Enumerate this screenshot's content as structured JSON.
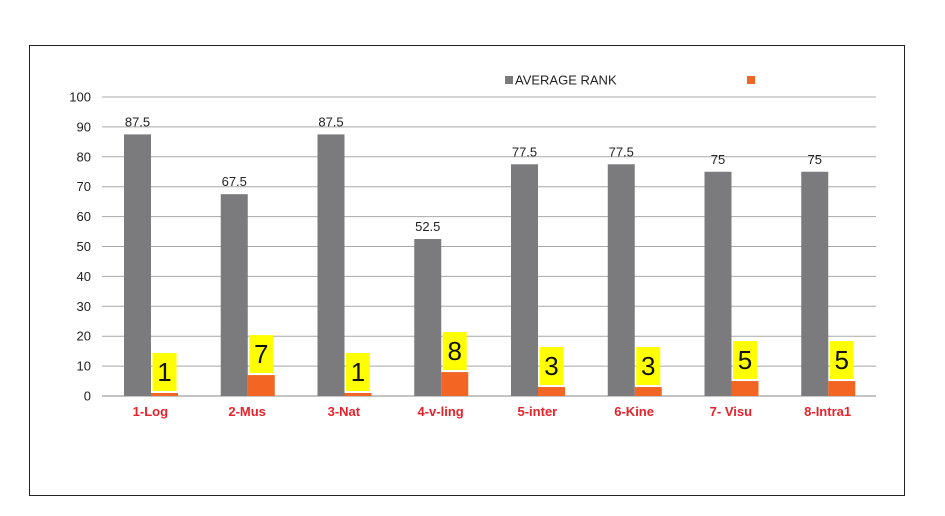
{
  "chart_data": {
    "type": "bar",
    "categories": [
      "1-Log",
      "2-Mus",
      "3-Nat",
      "4-v-ling",
      "5-inter",
      "6-Kine",
      "7- Visu",
      "8-Intra1"
    ],
    "series": [
      {
        "name": "AVERAGE RANK",
        "color": "#7b7b7d",
        "values": [
          87.5,
          67.5,
          87.5,
          52.5,
          77.5,
          77.5,
          75,
          75
        ],
        "labels": [
          "87.5",
          "67.5",
          "87.5",
          "52.5",
          "77.5",
          "77.5",
          "75",
          "75"
        ]
      },
      {
        "name": "",
        "color": "#f26522",
        "values": [
          1,
          7,
          1,
          8,
          3,
          3,
          5,
          5
        ],
        "labels": [
          "1",
          "7",
          "1",
          "8",
          "3",
          "3",
          "5",
          "5"
        ],
        "label_bg": "#ffff00"
      }
    ],
    "yticks": [
      "0",
      "10",
      "20",
      "30",
      "40",
      "50",
      "60",
      "70",
      "80",
      "90",
      "100"
    ],
    "ylim": [
      0,
      100
    ],
    "grid": true,
    "legend": "top-right",
    "category_label_color": "#e8222a",
    "title": "",
    "xlabel": "",
    "ylabel": ""
  }
}
